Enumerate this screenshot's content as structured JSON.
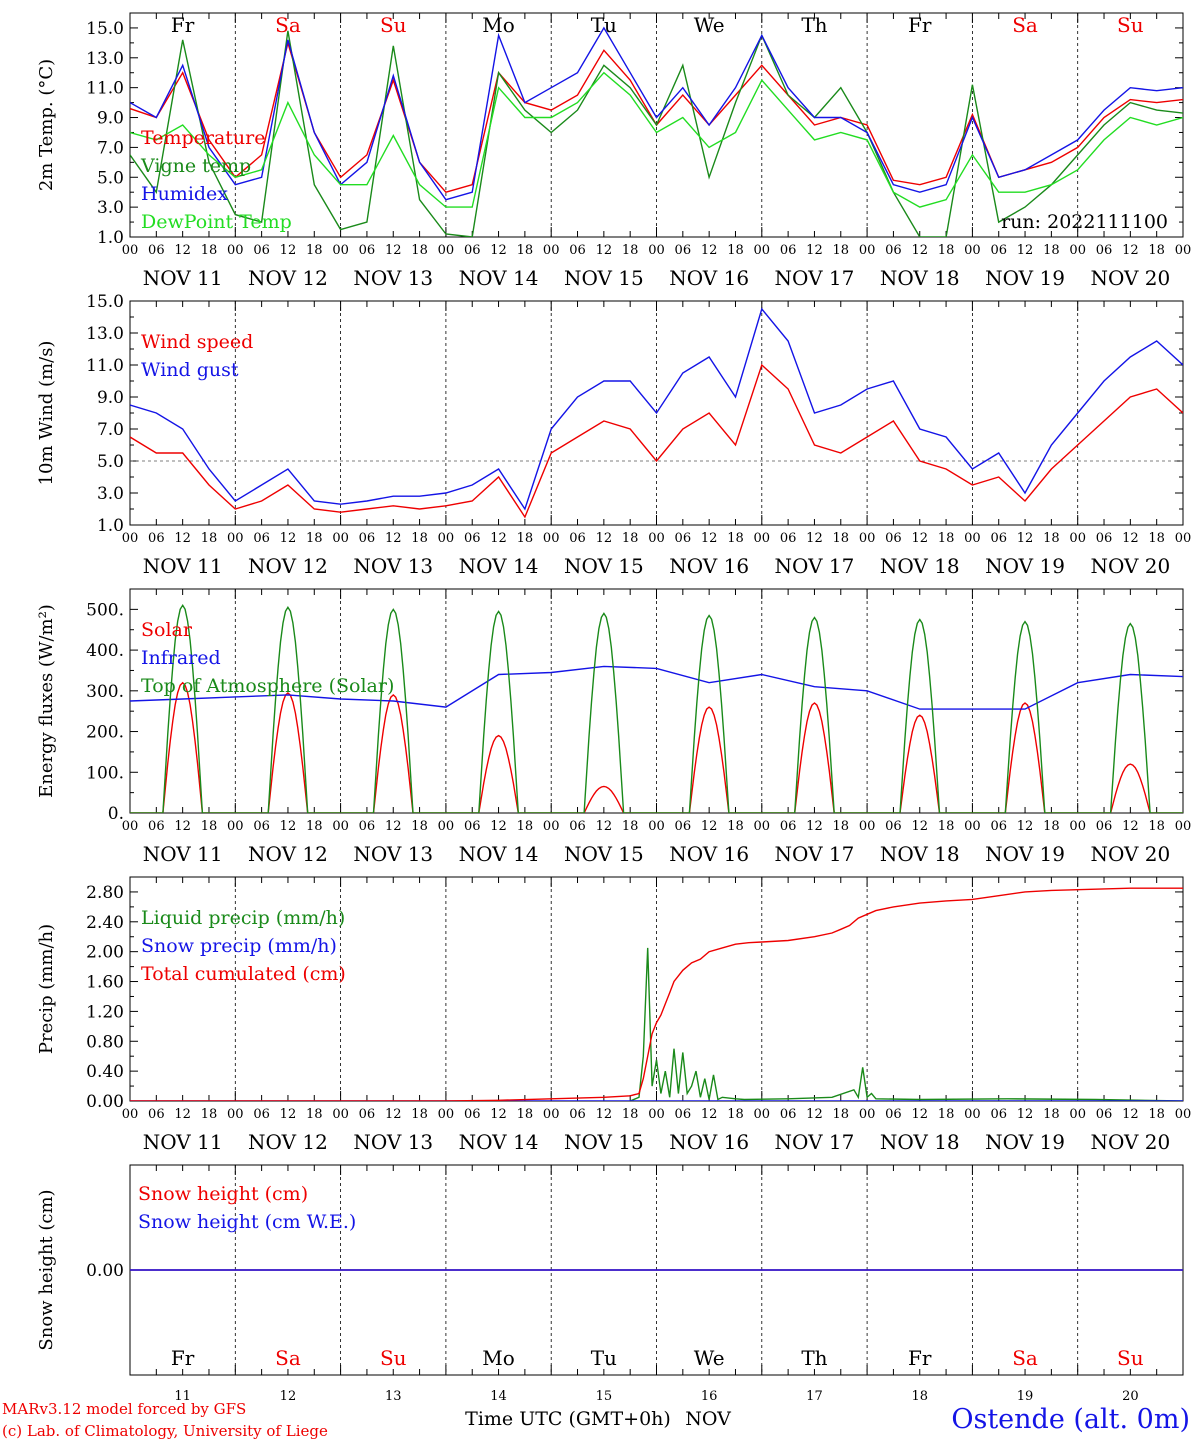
{
  "colors": {
    "red": "#ee0000",
    "green": "#1a8a1a",
    "blue": "#1414e6",
    "light_green": "#22dd22",
    "purple": "#7a1a9a",
    "black": "#000000"
  },
  "time_axis": {
    "hour_labels": [
      "00",
      "06",
      "12",
      "18"
    ],
    "final_hour_label": "00",
    "day_labels": [
      "NOV 11",
      "NOV 12",
      "NOV 13",
      "NOV 14",
      "NOV 15",
      "NOV 16",
      "NOV 17",
      "NOV 18",
      "NOV 19",
      "NOV 20"
    ],
    "weekdays": [
      {
        "label": "Fr",
        "color": "black"
      },
      {
        "label": "Sa",
        "color": "red"
      },
      {
        "label": "Su",
        "color": "red"
      },
      {
        "label": "Mo",
        "color": "black"
      },
      {
        "label": "Tu",
        "color": "black"
      },
      {
        "label": "We",
        "color": "black"
      },
      {
        "label": "Th",
        "color": "black"
      },
      {
        "label": "Fr",
        "color": "black"
      },
      {
        "label": "Sa",
        "color": "red"
      },
      {
        "label": "Su",
        "color": "red"
      }
    ],
    "day_numbers": [
      "11",
      "12",
      "13",
      "14",
      "15",
      "16",
      "17",
      "18",
      "19",
      "20"
    ],
    "xlabel": "Time UTC (GMT+0h)",
    "month": "NOV"
  },
  "footer": {
    "model_line": "MARv3.12 model forced by GFS",
    "copyright_line": "(c) Lab. of Climatology, University of Liege",
    "station": "Ostende (alt. 0m)"
  },
  "chart_data": [
    {
      "id": "temp",
      "type": "line",
      "ylabel": "2m Temp. (°C)",
      "ylim": [
        1,
        16
      ],
      "yticks": [
        1,
        3,
        5,
        7,
        9,
        11,
        13,
        15
      ],
      "ytick_labels": [
        "1.0",
        "3.0",
        "5.0",
        "7.0",
        "9.0",
        "11.0",
        "13.0",
        "15.0"
      ],
      "annotation": "run: 2022111100",
      "legend_placement": "left",
      "x_unit": "hours since 2022-11-11 00 UTC",
      "series": [
        {
          "name": "Temperature",
          "color": "red",
          "x": [
            0,
            6,
            12,
            18,
            24,
            30,
            36,
            42,
            48,
            54,
            60,
            66,
            72,
            78,
            84,
            90,
            96,
            102,
            108,
            114,
            120,
            126,
            132,
            138,
            144,
            150,
            156,
            162,
            168,
            174,
            180,
            186,
            192,
            198,
            204,
            210,
            216,
            222,
            228,
            234,
            240
          ],
          "y": [
            9.6,
            9.0,
            12.0,
            7.5,
            5.0,
            6.5,
            14.0,
            8.0,
            5.0,
            6.5,
            11.5,
            6.0,
            4.0,
            4.5,
            12.0,
            10.0,
            9.5,
            10.5,
            13.5,
            11.5,
            8.5,
            10.5,
            8.5,
            10.5,
            12.5,
            10.5,
            8.5,
            9.0,
            8.5,
            4.8,
            4.5,
            5.0,
            9.2,
            5.0,
            5.5,
            6.0,
            7.0,
            9.0,
            10.2,
            10.0,
            10.2
          ]
        },
        {
          "name": "Vigne temp",
          "color": "green",
          "x": [
            0,
            6,
            12,
            18,
            24,
            30,
            36,
            42,
            48,
            54,
            60,
            66,
            72,
            78,
            84,
            90,
            96,
            102,
            108,
            114,
            120,
            126,
            132,
            138,
            144,
            150,
            156,
            162,
            168,
            174,
            180,
            186,
            192,
            198,
            204,
            210,
            216,
            222,
            228,
            234,
            240
          ],
          "y": [
            6.5,
            4.0,
            14.2,
            6.0,
            2.5,
            2.0,
            14.8,
            4.5,
            1.5,
            2.0,
            13.8,
            3.5,
            1.2,
            1.0,
            12.0,
            9.5,
            8.0,
            9.5,
            12.5,
            11.0,
            8.5,
            12.5,
            5.0,
            10.0,
            14.5,
            10.5,
            9.0,
            11.0,
            8.0,
            4.0,
            1.0,
            1.0,
            11.2,
            2.0,
            3.0,
            4.5,
            6.5,
            8.5,
            10.0,
            9.5,
            9.3
          ]
        },
        {
          "name": "Humidex",
          "color": "blue",
          "x": [
            0,
            6,
            12,
            18,
            24,
            30,
            36,
            42,
            48,
            54,
            60,
            66,
            72,
            78,
            84,
            90,
            96,
            102,
            108,
            114,
            120,
            126,
            132,
            138,
            144,
            150,
            156,
            162,
            168,
            174,
            180,
            186,
            192,
            198,
            204,
            210,
            216,
            222,
            228,
            234,
            240
          ],
          "y": [
            10.0,
            9.0,
            12.5,
            7.0,
            4.5,
            5.0,
            14.2,
            8.0,
            4.5,
            6.0,
            11.8,
            6.0,
            3.5,
            4.0,
            14.5,
            10.0,
            11.0,
            12.0,
            15.0,
            12.0,
            9.0,
            11.0,
            8.5,
            11.0,
            14.5,
            11.0,
            9.0,
            9.0,
            8.0,
            4.5,
            4.0,
            4.5,
            9.0,
            5.0,
            5.5,
            6.5,
            7.5,
            9.5,
            11.0,
            10.8,
            11.0
          ]
        },
        {
          "name": "DewPoint Temp",
          "color": "light_green",
          "x": [
            0,
            6,
            12,
            18,
            24,
            30,
            36,
            42,
            48,
            54,
            60,
            66,
            72,
            78,
            84,
            90,
            96,
            102,
            108,
            114,
            120,
            126,
            132,
            138,
            144,
            150,
            156,
            162,
            168,
            174,
            180,
            186,
            192,
            198,
            204,
            210,
            216,
            222,
            228,
            234,
            240
          ],
          "y": [
            8.0,
            7.5,
            8.5,
            6.5,
            5.0,
            5.5,
            10.0,
            6.5,
            4.5,
            4.5,
            7.8,
            4.5,
            3.0,
            3.0,
            11.0,
            9.0,
            9.0,
            10.0,
            12.0,
            10.5,
            8.0,
            9.0,
            7.0,
            8.0,
            11.5,
            9.5,
            7.5,
            8.0,
            7.5,
            4.0,
            3.0,
            3.5,
            6.5,
            4.0,
            4.0,
            4.5,
            5.5,
            7.5,
            9.0,
            8.5,
            9.0
          ]
        }
      ]
    },
    {
      "id": "wind",
      "type": "line",
      "ylabel": "10m Wind (m/s)",
      "ylim": [
        1,
        15
      ],
      "yticks": [
        1,
        3,
        5,
        7,
        9,
        11,
        13,
        15
      ],
      "ytick_labels": [
        "1.0",
        "3.0",
        "5.0",
        "7.0",
        "9.0",
        "11.0",
        "13.0",
        "15.0"
      ],
      "reference_line": 5,
      "legend_placement": "top-left",
      "x_unit": "hours since 2022-11-11 00 UTC",
      "series": [
        {
          "name": "Wind speed",
          "color": "red",
          "x": [
            0,
            6,
            12,
            18,
            24,
            30,
            36,
            42,
            48,
            54,
            60,
            66,
            72,
            78,
            84,
            90,
            96,
            102,
            108,
            114,
            120,
            126,
            132,
            138,
            144,
            150,
            156,
            162,
            168,
            174,
            180,
            186,
            192,
            198,
            204,
            210,
            216,
            222,
            228,
            234,
            240
          ],
          "y": [
            6.5,
            5.5,
            5.5,
            3.5,
            2.0,
            2.5,
            3.5,
            2.0,
            1.8,
            2.0,
            2.2,
            2.0,
            2.2,
            2.5,
            4.0,
            1.5,
            5.5,
            6.5,
            7.5,
            7.0,
            5.0,
            7.0,
            8.0,
            6.0,
            11.0,
            9.5,
            6.0,
            5.5,
            6.5,
            7.5,
            5.0,
            4.5,
            3.5,
            4.0,
            2.5,
            4.5,
            6.0,
            7.5,
            9.0,
            9.5,
            8.0
          ]
        },
        {
          "name": "Wind gust",
          "color": "blue",
          "x": [
            0,
            6,
            12,
            18,
            24,
            30,
            36,
            42,
            48,
            54,
            60,
            66,
            72,
            78,
            84,
            90,
            96,
            102,
            108,
            114,
            120,
            126,
            132,
            138,
            144,
            150,
            156,
            162,
            168,
            174,
            180,
            186,
            192,
            198,
            204,
            210,
            216,
            222,
            228,
            234,
            240
          ],
          "y": [
            8.5,
            8.0,
            7.0,
            4.5,
            2.5,
            3.5,
            4.5,
            2.5,
            2.3,
            2.5,
            2.8,
            2.8,
            3.0,
            3.5,
            4.5,
            2.0,
            7.0,
            9.0,
            10.0,
            10.0,
            8.0,
            10.5,
            11.5,
            9.0,
            14.5,
            12.5,
            8.0,
            8.5,
            9.5,
            10.0,
            7.0,
            6.5,
            4.5,
            5.5,
            3.0,
            6.0,
            8.0,
            10.0,
            11.5,
            12.5,
            11.0
          ]
        }
      ]
    },
    {
      "id": "energy",
      "type": "line",
      "ylabel": "Energy fluxes (W/m²)",
      "ylim": [
        0,
        550
      ],
      "yticks": [
        0,
        100,
        200,
        300,
        400,
        500
      ],
      "ytick_labels": [
        "0.",
        "100.",
        "200.",
        "300.",
        "400.",
        "500."
      ],
      "legend_placement": "top-left",
      "x_unit": "hours since 2022-11-11 00 UTC",
      "peak_hour": 12,
      "daylight_hours": [
        7.5,
        16.5
      ],
      "series": [
        {
          "name": "Solar",
          "color": "red",
          "daily_peak": [
            320,
            295,
            290,
            190,
            65,
            260,
            270,
            240,
            270,
            120
          ]
        },
        {
          "name": "Infrared",
          "color": "blue",
          "x": [
            0,
            12,
            24,
            36,
            48,
            60,
            72,
            84,
            96,
            108,
            120,
            132,
            144,
            156,
            168,
            180,
            192,
            204,
            216,
            228,
            240
          ],
          "y": [
            275,
            280,
            285,
            290,
            280,
            275,
            260,
            340,
            345,
            360,
            355,
            320,
            340,
            310,
            300,
            255,
            255,
            255,
            320,
            340,
            335
          ]
        },
        {
          "name": "Top of Atmosphere (Solar)",
          "color": "green",
          "daily_peak": [
            510,
            505,
            500,
            495,
            490,
            485,
            480,
            475,
            470,
            465
          ]
        }
      ]
    },
    {
      "id": "precip",
      "type": "line",
      "ylabel": "Precip (mm/h)",
      "ylim": [
        0,
        3.0
      ],
      "yticks": [
        0,
        0.4,
        0.8,
        1.2,
        1.6,
        2.0,
        2.4,
        2.8
      ],
      "ytick_labels": [
        "0.00",
        "0.40",
        "0.80",
        "1.20",
        "1.60",
        "2.00",
        "2.40",
        "2.80"
      ],
      "legend_placement": "top-left",
      "x_unit": "hours since 2022-11-11 00 UTC",
      "series": [
        {
          "name": "Liquid precip (mm/h)",
          "color": "green",
          "x": [
            114,
            116,
            117,
            118,
            119,
            120,
            121,
            122,
            123,
            124,
            125,
            126,
            127,
            128,
            129,
            130,
            131,
            132,
            133,
            134,
            135,
            138,
            140,
            150,
            160,
            165,
            166,
            167,
            168,
            169,
            170,
            180,
            200,
            220,
            240
          ],
          "y": [
            0.0,
            0.05,
            0.6,
            2.05,
            0.2,
            0.55,
            0.1,
            0.4,
            0.05,
            0.7,
            0.1,
            0.65,
            0.1,
            0.2,
            0.4,
            0.05,
            0.3,
            0.02,
            0.35,
            0.02,
            0.05,
            0.03,
            0.02,
            0.03,
            0.05,
            0.15,
            0.05,
            0.45,
            0.05,
            0.1,
            0.03,
            0.02,
            0.03,
            0.02,
            0.0
          ]
        },
        {
          "name": "Snow precip (mm/h)",
          "color": "blue",
          "x": [
            0,
            240
          ],
          "y": [
            0,
            0
          ]
        },
        {
          "name": "Total cumulated (cm)",
          "color": "red",
          "x": [
            0,
            72,
            84,
            96,
            108,
            114,
            116,
            117,
            118,
            119,
            120,
            121,
            122,
            123,
            124,
            126,
            128,
            130,
            132,
            135,
            138,
            141,
            144,
            150,
            156,
            160,
            162,
            164,
            166,
            168,
            170,
            174,
            180,
            186,
            192,
            198,
            204,
            210,
            216,
            222,
            228,
            234,
            240
          ],
          "y": [
            0,
            0,
            0.01,
            0.03,
            0.05,
            0.07,
            0.1,
            0.3,
            0.6,
            0.9,
            1.05,
            1.15,
            1.3,
            1.45,
            1.6,
            1.75,
            1.85,
            1.9,
            2.0,
            2.05,
            2.1,
            2.12,
            2.13,
            2.15,
            2.2,
            2.25,
            2.3,
            2.35,
            2.45,
            2.5,
            2.55,
            2.6,
            2.65,
            2.68,
            2.7,
            2.75,
            2.8,
            2.82,
            2.83,
            2.84,
            2.85,
            2.85,
            2.85
          ]
        }
      ]
    },
    {
      "id": "snow",
      "type": "line",
      "ylabel": "Snow height (cm)",
      "ylim": [
        -1,
        1
      ],
      "yticks": [
        0
      ],
      "ytick_labels": [
        "0.00"
      ],
      "legend_placement": "top-left",
      "x_unit": "hours since 2022-11-11 00 UTC",
      "series": [
        {
          "name": "Snow height (cm)",
          "color": "red",
          "x": [
            0,
            240
          ],
          "y": [
            0,
            0
          ]
        },
        {
          "name": "Snow height (cm W.E.)",
          "color": "blue",
          "x": [
            0,
            240
          ],
          "y": [
            0,
            0
          ]
        }
      ]
    }
  ]
}
